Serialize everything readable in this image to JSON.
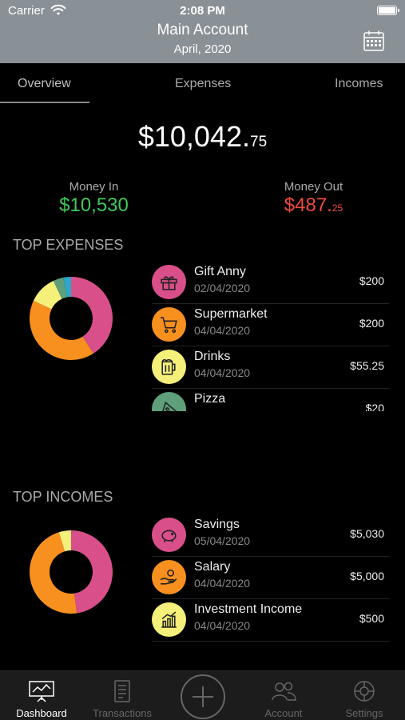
{
  "status": {
    "carrier": "Carrier",
    "time": "2:08 PM"
  },
  "header": {
    "title": "Main Account",
    "subtitle": "April, 2020"
  },
  "tabs": [
    {
      "label": "Overview",
      "active": true
    },
    {
      "label": "Expenses",
      "active": false
    },
    {
      "label": "Incomes",
      "active": false
    }
  ],
  "balance": {
    "whole": "$10,042.",
    "cents": "75"
  },
  "money_in": {
    "label": "Money In",
    "value": "$10,530"
  },
  "money_out": {
    "label": "Money Out",
    "value": "$487.",
    "cents": "25"
  },
  "top_expenses": {
    "title": "TOP EXPENSES",
    "items": [
      {
        "name": "Gift Anny",
        "date": "02/04/2020",
        "amount": "$200",
        "icon": "gift-icon",
        "color": "#d94f8a"
      },
      {
        "name": "Supermarket",
        "date": "04/04/2020",
        "amount": "$200",
        "icon": "cart-icon",
        "color": "#f7901e"
      },
      {
        "name": "Drinks",
        "date": "04/04/2020",
        "amount": "$55.25",
        "icon": "drink-icon",
        "color": "#f5f07a"
      },
      {
        "name": "Pizza",
        "date": "",
        "amount": "$20",
        "icon": "pizza-icon",
        "color": "#5fa07a"
      }
    ],
    "donut": [
      {
        "value": 41,
        "color": "#d94f8a"
      },
      {
        "value": 41,
        "color": "#f7901e"
      },
      {
        "value": 11,
        "color": "#f5f07a"
      },
      {
        "value": 4,
        "color": "#5fa07a"
      },
      {
        "value": 3,
        "color": "#2aa7c9"
      }
    ]
  },
  "top_incomes": {
    "title": "TOP INCOMES",
    "items": [
      {
        "name": "Savings",
        "date": "05/04/2020",
        "amount": "$5,030",
        "icon": "piggy-bank-icon",
        "color": "#d94f8a"
      },
      {
        "name": "Salary",
        "date": "04/04/2020",
        "amount": "$5,000",
        "icon": "salary-hand-icon",
        "color": "#f7901e"
      },
      {
        "name": "Investment Income",
        "date": "04/04/2020",
        "amount": "$500",
        "icon": "investment-chart-icon",
        "color": "#f5f07a"
      }
    ],
    "donut": [
      {
        "value": 5030,
        "color": "#d94f8a"
      },
      {
        "value": 5000,
        "color": "#f7901e"
      },
      {
        "value": 500,
        "color": "#f5f07a"
      }
    ]
  },
  "tabbar": [
    {
      "label": "Dashboard",
      "icon": "dashboard-icon",
      "active": true
    },
    {
      "label": "Transactions",
      "icon": "transactions-icon",
      "active": false
    },
    {
      "label": "Account",
      "icon": "account-icon",
      "active": false
    },
    {
      "label": "Settings",
      "icon": "settings-icon",
      "active": false
    }
  ]
}
